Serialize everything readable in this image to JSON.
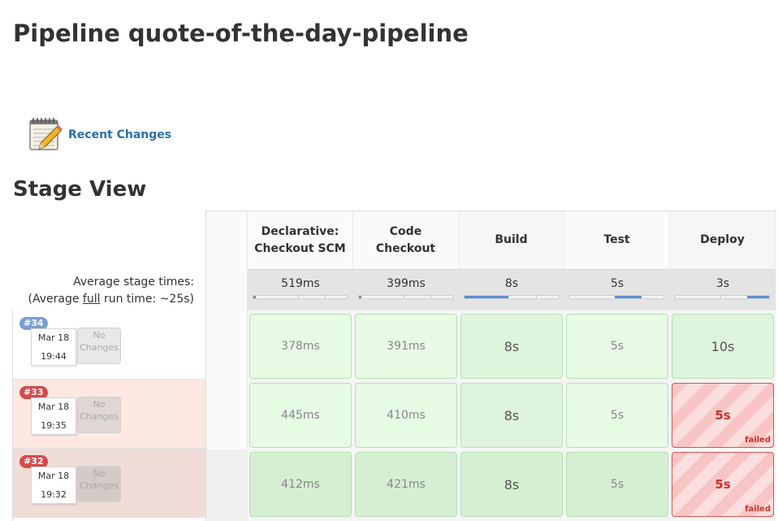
{
  "page": {
    "title": "Pipeline quote-of-the-day-pipeline"
  },
  "links": {
    "recent_changes": "Recent Changes"
  },
  "stage_view": {
    "title": "Stage View",
    "avg_stage_times_label": "Average stage times:",
    "avg_full_prefix": "(Average ",
    "avg_full_word": "full",
    "avg_full_suffix": " run time: ~25s)",
    "stages": [
      {
        "name": "Declarative: Checkout SCM",
        "avg": "519ms"
      },
      {
        "name": "Code Checkout",
        "avg": "399ms"
      },
      {
        "name": "Build",
        "avg": "8s"
      },
      {
        "name": "Test",
        "avg": "5s"
      },
      {
        "name": "Deploy",
        "avg": "3s"
      }
    ],
    "runs": [
      {
        "number": "#34",
        "date": "Mar 18",
        "time": "19:44",
        "changes": "No Changes",
        "status": "success",
        "durations": [
          "378ms",
          "391ms",
          "8s",
          "5s",
          "10s"
        ],
        "failed": [
          false,
          false,
          false,
          false,
          false
        ]
      },
      {
        "number": "#33",
        "date": "Mar 18",
        "time": "19:35",
        "changes": "No Changes",
        "status": "failed",
        "durations": [
          "445ms",
          "410ms",
          "8s",
          "5s",
          "5s"
        ],
        "failed": [
          false,
          false,
          false,
          false,
          true
        ]
      },
      {
        "number": "#32",
        "date": "Mar 18",
        "time": "19:32",
        "changes": "No Changes",
        "status": "failed",
        "durations": [
          "412ms",
          "421ms",
          "8s",
          "5s",
          "5s"
        ],
        "failed": [
          false,
          false,
          false,
          false,
          true
        ]
      }
    ],
    "failed_label": "failed"
  },
  "colors": {
    "success": "#e6fae4",
    "failed": "#d9534f",
    "link": "#2a6ea6",
    "progress": "#5b8ad6"
  },
  "icons": {
    "recent_changes": "notepad-icon"
  }
}
